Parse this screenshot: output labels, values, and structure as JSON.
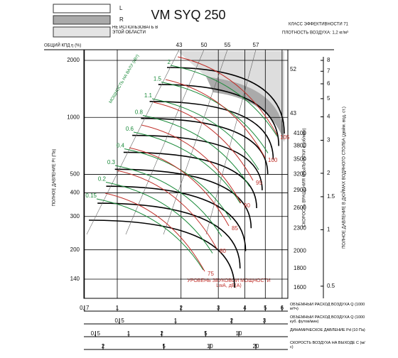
{
  "title": "VM SYQ 250",
  "legend": {
    "items": [
      {
        "label": "L"
      },
      {
        "label": "R"
      },
      {
        "label": "НЕ ИСПОЛЬЗОВАТЬ В ЭТОЙ ОБЛАСТИ"
      }
    ]
  },
  "class": "КЛАСС ЭФФЕКТИВНОСТИ 71",
  "density": "ПЛОТНОСТЬ ВОЗДУХА: 1,2 кг/м³",
  "efficiency": {
    "label": "ОБЩИЙ КПД η (%)",
    "top": [
      43,
      50,
      55,
      57
    ],
    "right": [
      52,
      43
    ]
  },
  "pressure": {
    "label": "ПОЛНОЕ ДАВЛЕНИЕ Pt (Па)",
    "ticks": [
      2000,
      1000,
      500,
      400,
      300,
      200,
      140
    ]
  },
  "inch": {
    "label": "ПОЛНОЕ ДАВЛЕНИЕ В ДЮЙМАХ ВОДЯНОГО СТОЛБА (дюйм. вод. ст.)",
    "ticks": [
      8,
      7,
      6,
      5,
      4,
      3,
      2,
      1.5,
      1,
      0.5
    ]
  },
  "rpm": {
    "label": "СКОРОСТЬ ВРАЩЕНИЯ КРЫЛЬЧАТКИ n (об/мин)",
    "ticks": [
      4100,
      3800,
      3500,
      3200,
      2900,
      2600,
      2300,
      2000,
      1800,
      1600
    ]
  },
  "power": {
    "label": "МОЩНОСТЬ НА ВАЛУ (кВт)",
    "values": [
      2,
      1.5,
      1.1,
      0.8,
      0.6,
      0.4,
      0.3,
      0.2,
      0.15
    ]
  },
  "sound": {
    "label": "УРОВЕНЬ ЗВУКОВОЙ МОЩНОСТИ LwA, дБ(А)",
    "values": [
      105,
      100,
      95,
      90,
      85,
      80,
      75
    ]
  },
  "rows": [
    {
      "label": "ОБЪЕМНЫЙ РАСХОД ВОЗДУХА Q (1000 м³/ч)",
      "ticks": [
        {
          "value": 0.7,
          "label": "0, 7"
        },
        1,
        2,
        3,
        4,
        5,
        6
      ]
    },
    {
      "label": "ОБЪЕМНЫЙ РАСХОД ВОЗДУХА Q (1000 куб. футов/мин)",
      "ticks": [
        {
          "value": 0.5,
          "label": "0, 5"
        },
        1,
        2,
        3
      ]
    },
    {
      "label": "ДИНАМИЧЕСКОЕ ДАВЛЕНИЕ Pd (10 Па)",
      "ticks": [
        {
          "value": 0.5,
          "label": "0, 5"
        },
        1,
        2,
        5,
        10
      ]
    },
    {
      "label": "СКОРОСТЬ ВОЗДУХА НА ВЫХОДЕ С (м/с)",
      "ticks": [
        2,
        5,
        10,
        20
      ]
    }
  ]
}
